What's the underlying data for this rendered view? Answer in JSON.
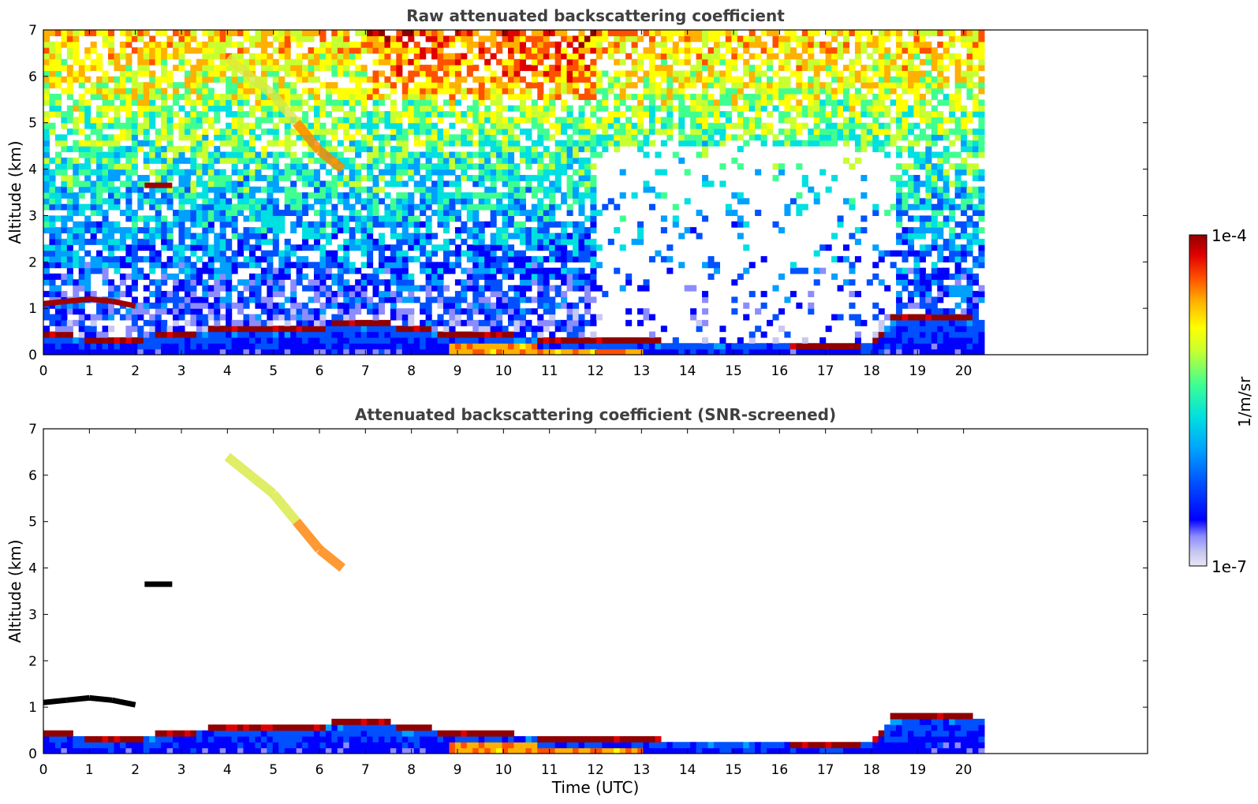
{
  "chart_data": [
    {
      "type": "heatmap",
      "id": "raw",
      "title": "Raw attenuated backscattering coefficient",
      "xlabel": "",
      "ylabel": "Altitude (km)",
      "xlim": [
        0,
        24
      ],
      "ylim": [
        0,
        7
      ],
      "xticks": [
        "0",
        "1",
        "2",
        "3",
        "4",
        "5",
        "6",
        "7",
        "8",
        "9",
        "10",
        "11",
        "12",
        "13",
        "14",
        "15",
        "16",
        "17",
        "18",
        "19",
        "20"
      ],
      "yticks": [
        "0",
        "1",
        "2",
        "3",
        "4",
        "5",
        "6",
        "7"
      ],
      "data_end_time": 20.45,
      "features": [
        {
          "name": "boundary-layer",
          "x": [
            0,
            0.5,
            1,
            2,
            3,
            4,
            5,
            6,
            6.8,
            7.5,
            8,
            9,
            10,
            11,
            12,
            13,
            14,
            15,
            16,
            17,
            18,
            18.5,
            19,
            20,
            20.45
          ],
          "top_km": [
            0.45,
            0.35,
            0.3,
            0.3,
            0.4,
            0.5,
            0.5,
            0.55,
            0.65,
            0.6,
            0.5,
            0.4,
            0.35,
            0.3,
            0.25,
            0.22,
            0.2,
            0.2,
            0.2,
            0.15,
            0.2,
            0.75,
            0.75,
            0.72,
            0.7
          ]
        },
        {
          "name": "low-cloud",
          "x": [
            0,
            0.5,
            1,
            1.5,
            2
          ],
          "altitude_km": [
            1.1,
            1.15,
            1.2,
            1.15,
            1.05
          ]
        },
        {
          "name": "mid-cloud",
          "x": [
            2.2,
            2.5,
            2.8
          ],
          "altitude_km": [
            3.65,
            3.65,
            3.65
          ]
        },
        {
          "name": "cirrus-fallstreak",
          "x": [
            4,
            4.5,
            5,
            5.5,
            6,
            6.5
          ],
          "altitude_km": [
            6.4,
            6.0,
            5.6,
            5.0,
            4.4,
            4.0
          ]
        }
      ]
    },
    {
      "type": "heatmap",
      "id": "screened",
      "title": "Attenuated backscattering coefficient (SNR-screened)",
      "xlabel": "Time (UTC)",
      "ylabel": "Altitude (km)",
      "xlim": [
        0,
        24
      ],
      "ylim": [
        0,
        7
      ],
      "xticks": [
        "0",
        "1",
        "2",
        "3",
        "4",
        "5",
        "6",
        "7",
        "8",
        "9",
        "10",
        "11",
        "12",
        "13",
        "14",
        "15",
        "16",
        "17",
        "18",
        "19",
        "20"
      ],
      "yticks": [
        "0",
        "1",
        "2",
        "3",
        "4",
        "5",
        "6",
        "7"
      ],
      "data_end_time": 20.45
    }
  ],
  "colorbar": {
    "label": "1/m/sr",
    "max_label": "1e-4",
    "min_label": "1e-7",
    "range": [
      1e-07,
      0.0001
    ],
    "scale": "log",
    "colors": [
      "#e6e6f5",
      "#c8c8f0",
      "#8c8cff",
      "#0000ff",
      "#0050ff",
      "#00a0ff",
      "#00e0e0",
      "#40ff90",
      "#c8ff30",
      "#ffff00",
      "#ffb000",
      "#ff5000",
      "#e00000",
      "#900000"
    ]
  }
}
